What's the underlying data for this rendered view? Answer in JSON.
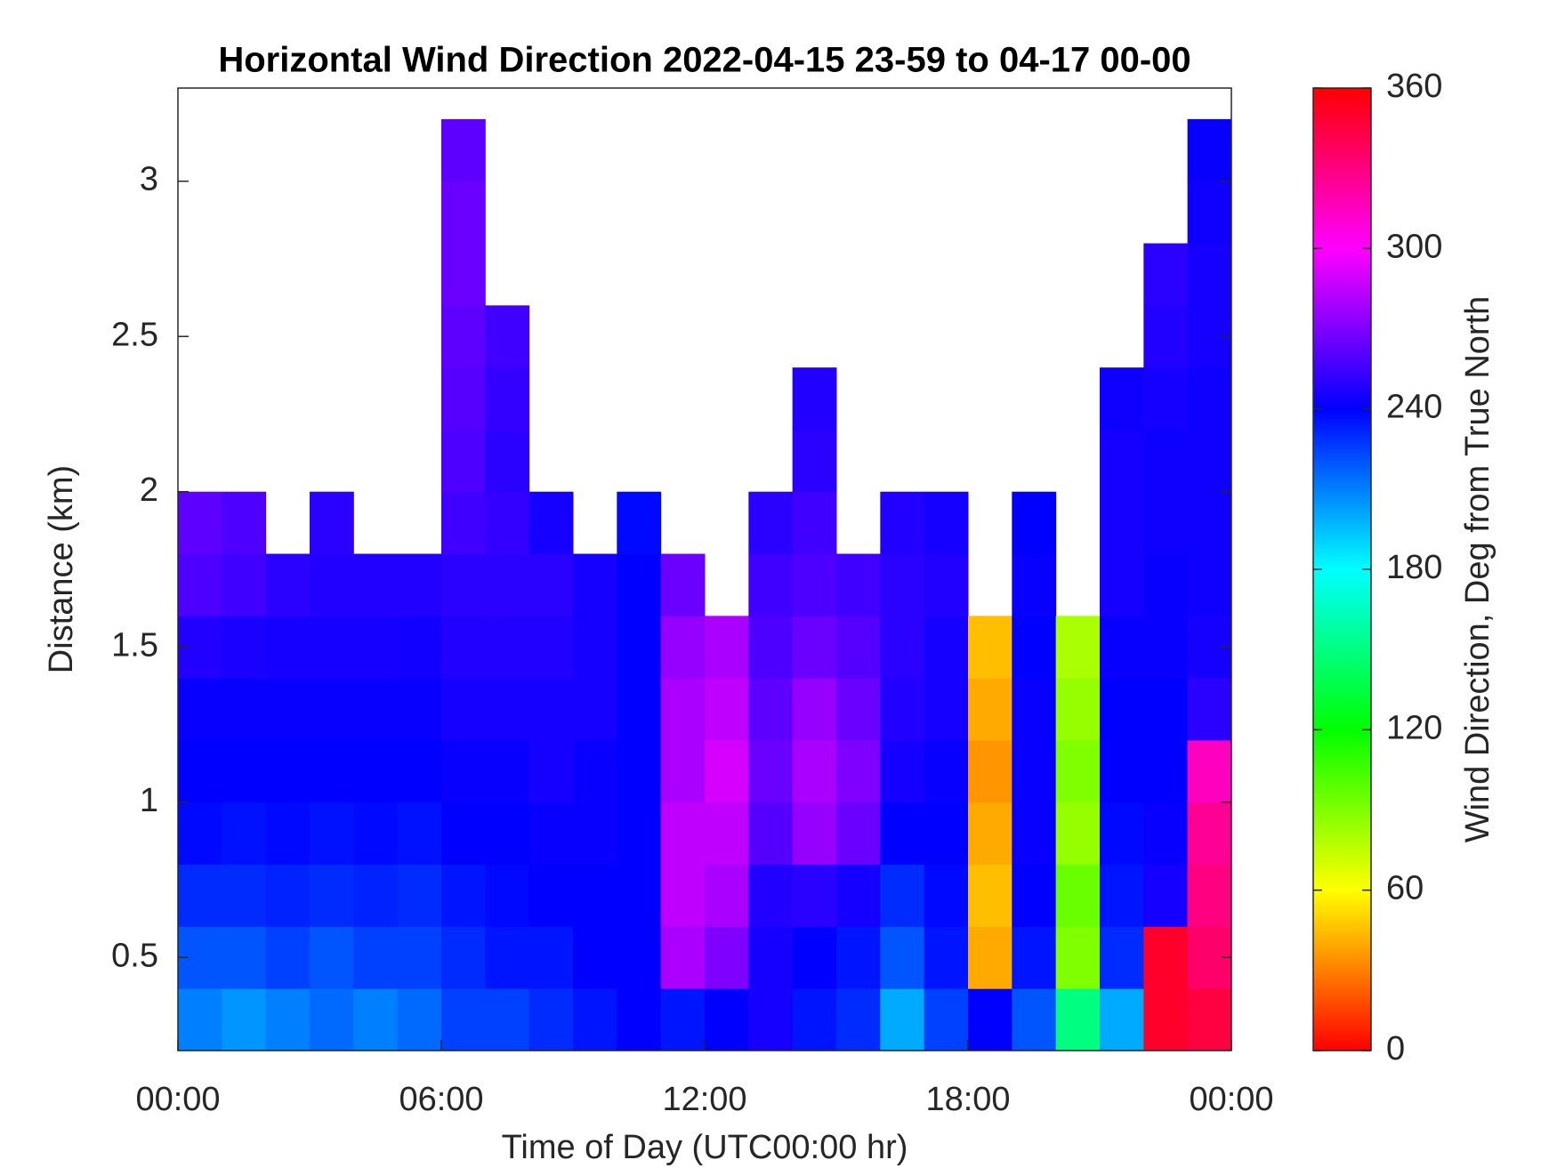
{
  "chart_data": {
    "type": "heatmap",
    "title": "Horizontal Wind Direction 2022-04-15 23-59 to 04-17 00-00",
    "xlabel": "Time of Day (UTC00:00 hr)",
    "ylabel": "Distance (km)",
    "x": [
      0.5,
      1.5,
      2.5,
      3.5,
      4.5,
      5.5,
      6.5,
      7.5,
      8.5,
      9.5,
      10.5,
      11.5,
      12.5,
      13.5,
      14.5,
      15.5,
      16.5,
      17.5,
      18.5,
      19.5,
      20.5,
      21.5,
      22.5,
      23.5
    ],
    "y": [
      0.3,
      0.5,
      0.7,
      0.9,
      1.1,
      1.3,
      1.5,
      1.7,
      1.9,
      2.1,
      2.3,
      2.5,
      2.7,
      2.9,
      3.1
    ],
    "values": [
      [
        210,
        205,
        210,
        215,
        210,
        215,
        225,
        225,
        230,
        235,
        240,
        235,
        240,
        245,
        235,
        230,
        200,
        225,
        240,
        220,
        150,
        200,
        350,
        345
      ],
      [
        220,
        220,
        225,
        220,
        225,
        225,
        230,
        235,
        235,
        240,
        240,
        280,
        270,
        245,
        240,
        235,
        220,
        235,
        40,
        235,
        90,
        230,
        350,
        335
      ],
      [
        230,
        230,
        232,
        230,
        232,
        230,
        235,
        238,
        240,
        240,
        240,
        285,
        280,
        248,
        250,
        245,
        230,
        238,
        45,
        240,
        95,
        235,
        245,
        330
      ],
      [
        238,
        236,
        238,
        236,
        238,
        236,
        240,
        240,
        242,
        242,
        240,
        285,
        285,
        260,
        275,
        265,
        240,
        240,
        40,
        242,
        85,
        238,
        242,
        325
      ],
      [
        240,
        240,
        240,
        240,
        240,
        240,
        242,
        242,
        245,
        242,
        240,
        280,
        290,
        265,
        280,
        270,
        245,
        242,
        35,
        242,
        90,
        240,
        240,
        315
      ],
      [
        242,
        242,
        242,
        242,
        242,
        242,
        245,
        245,
        245,
        245,
        240,
        280,
        285,
        262,
        275,
        265,
        248,
        245,
        40,
        242,
        85,
        240,
        240,
        250
      ],
      [
        248,
        246,
        245,
        245,
        245,
        244,
        248,
        248,
        248,
        245,
        240,
        275,
        280,
        258,
        265,
        260,
        250,
        245,
        45,
        240,
        80,
        242,
        242,
        245
      ],
      [
        258,
        255,
        250,
        248,
        248,
        248,
        250,
        250,
        250,
        245,
        240,
        265,
        null,
        255,
        258,
        255,
        250,
        248,
        null,
        242,
        null,
        245,
        242,
        243
      ],
      [
        262,
        258,
        null,
        250,
        null,
        null,
        255,
        252,
        245,
        null,
        238,
        null,
        null,
        250,
        255,
        null,
        248,
        245,
        null,
        240,
        null,
        245,
        243,
        243
      ],
      [
        null,
        null,
        null,
        null,
        null,
        null,
        258,
        250,
        null,
        null,
        null,
        null,
        null,
        null,
        250,
        null,
        null,
        null,
        null,
        null,
        null,
        245,
        243,
        243
      ],
      [
        null,
        null,
        null,
        null,
        null,
        null,
        260,
        252,
        null,
        null,
        null,
        null,
        null,
        null,
        248,
        null,
        null,
        null,
        null,
        null,
        null,
        243,
        245,
        243
      ],
      [
        null,
        null,
        null,
        null,
        null,
        null,
        262,
        255,
        null,
        null,
        null,
        null,
        null,
        null,
        null,
        null,
        null,
        null,
        null,
        null,
        null,
        null,
        248,
        245
      ],
      [
        null,
        null,
        null,
        null,
        null,
        null,
        265,
        null,
        null,
        null,
        null,
        null,
        null,
        null,
        null,
        null,
        null,
        null,
        null,
        null,
        null,
        null,
        250,
        245
      ],
      [
        null,
        null,
        null,
        null,
        null,
        null,
        265,
        null,
        null,
        null,
        null,
        null,
        null,
        null,
        null,
        null,
        null,
        null,
        null,
        null,
        null,
        null,
        null,
        243
      ],
      [
        null,
        null,
        null,
        null,
        null,
        null,
        262,
        null,
        null,
        null,
        null,
        null,
        null,
        null,
        null,
        null,
        null,
        null,
        null,
        null,
        null,
        null,
        null,
        242
      ]
    ],
    "xlim": [
      0,
      24
    ],
    "ylim": [
      0.2,
      3.3
    ],
    "xticks": [
      {
        "value": 0,
        "label": "00:00"
      },
      {
        "value": 6,
        "label": "06:00"
      },
      {
        "value": 12,
        "label": "12:00"
      },
      {
        "value": 18,
        "label": "18:00"
      },
      {
        "value": 24,
        "label": "00:00"
      }
    ],
    "yticks": [
      0.5,
      1,
      1.5,
      2,
      2.5,
      3
    ],
    "colormap": "hsv",
    "colorbar": {
      "label": "Wind Direction, Deg from True North",
      "lim": [
        0,
        360
      ],
      "ticks": [
        0,
        60,
        120,
        180,
        240,
        300,
        360
      ]
    }
  }
}
